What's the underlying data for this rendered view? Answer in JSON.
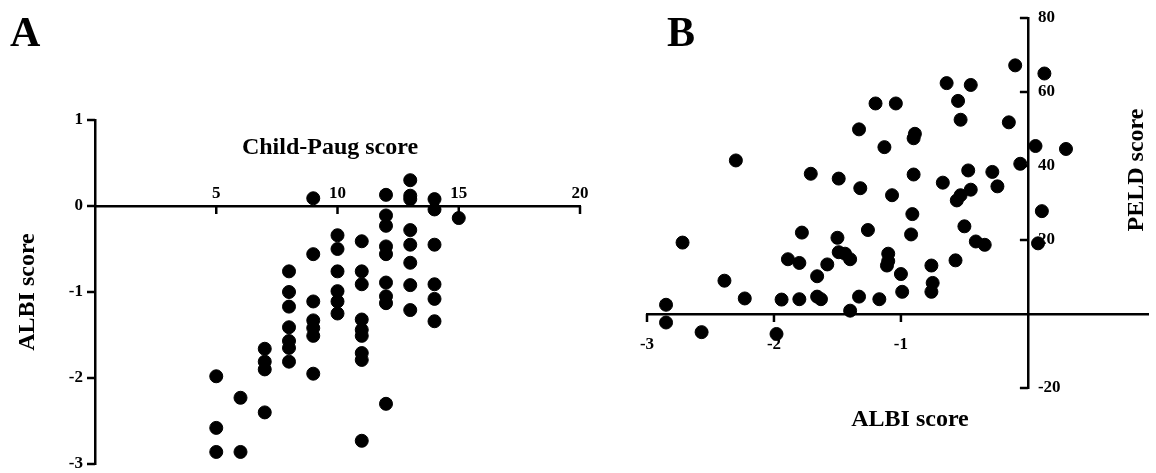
{
  "chart_data": [
    {
      "type": "scatter",
      "xlabel": "Child-Paug score",
      "ylabel": "ALBI score",
      "annotations": [
        "A"
      ],
      "xlim": [
        0,
        20
      ],
      "ylim": [
        -3,
        1
      ],
      "xticks": [
        5,
        10,
        15,
        20
      ],
      "yticks": [
        1,
        0,
        -1,
        -2,
        -3
      ],
      "color": "#000000",
      "marker": "circle",
      "x": [
        5,
        5,
        5,
        6,
        6,
        7,
        7,
        7,
        7,
        8,
        8,
        8,
        8,
        8,
        8,
        8,
        9,
        9,
        9,
        9,
        9,
        9,
        9,
        10,
        10,
        10,
        10,
        10,
        10,
        11,
        11,
        11,
        11,
        11,
        11,
        11,
        11,
        11,
        12,
        12,
        12,
        12,
        12,
        12,
        12,
        12,
        12,
        13,
        13,
        13,
        13,
        13,
        13,
        13,
        13,
        14,
        14,
        14,
        14,
        14,
        14,
        15
      ],
      "values": [
        -1.98,
        -2.58,
        -2.86,
        -2.23,
        -2.86,
        -1.66,
        -1.81,
        -1.9,
        -2.4,
        -0.76,
        -1,
        -1.17,
        -1.41,
        -1.57,
        -1.65,
        -1.81,
        0.09,
        -0.56,
        -1.11,
        -1.33,
        -1.42,
        -1.51,
        -1.95,
        -0.34,
        -0.5,
        -0.76,
        -0.99,
        -1.11,
        -1.25,
        -0.41,
        -0.76,
        -0.91,
        -1.32,
        -1.44,
        -1.51,
        -1.71,
        -1.79,
        -2.73,
        0.13,
        -0.11,
        -0.23,
        -0.47,
        -0.56,
        -0.89,
        -1.05,
        -1.13,
        -2.3,
        0.3,
        0.12,
        0.08,
        -0.28,
        -0.45,
        -0.66,
        -0.92,
        -1.21,
        0.08,
        -0.04,
        -0.45,
        -0.91,
        -1.08,
        -1.34,
        -0.14
      ]
    },
    {
      "type": "scatter",
      "xlabel": "ALBI score",
      "ylabel": "PELD score",
      "annotations": [
        "B"
      ],
      "xlim": [
        -3,
        0.95
      ],
      "ylim": [
        -20,
        80
      ],
      "xticks": [
        -3,
        -2,
        -1
      ],
      "yticks": [
        80,
        60,
        40,
        20,
        -20
      ],
      "color": "#000000",
      "marker": "circle",
      "x": [
        -2.85,
        -2.85,
        -2.72,
        -2.57,
        -2.39,
        -2.3,
        -2.23,
        -1.98,
        -1.94,
        -1.89,
        -1.8,
        -1.8,
        -1.78,
        -1.71,
        -1.66,
        -1.66,
        -1.63,
        -1.58,
        -1.5,
        -1.49,
        -1.49,
        -1.44,
        -1.4,
        -1.4,
        -1.33,
        -1.33,
        -1.32,
        -1.26,
        -1.2,
        -1.17,
        -1.13,
        -1.1,
        -1.1,
        -1.11,
        -1.07,
        -1.04,
        -1,
        -0.99,
        -0.92,
        -0.91,
        -0.9,
        -0.89,
        -0.9,
        -0.76,
        -0.75,
        -0.76,
        -0.67,
        -0.64,
        -0.57,
        -0.56,
        -0.55,
        -0.53,
        -0.53,
        -0.5,
        -0.47,
        -0.45,
        -0.45,
        -0.41,
        -0.34,
        -0.28,
        -0.24,
        -0.15,
        -0.1,
        -0.06,
        0.06,
        0.08,
        0.11,
        0.13,
        0.3
      ],
      "values": [
        2.5,
        -2.3,
        19.3,
        -4.9,
        9,
        41.5,
        4.2,
        -5.4,
        3.9,
        14.8,
        13.8,
        4,
        22,
        37.9,
        10.2,
        4.7,
        4,
        13.4,
        20.6,
        36.6,
        16.7,
        16.3,
        14.8,
        0.9,
        49.9,
        4.7,
        34,
        22.7,
        56.9,
        4,
        45.1,
        16.3,
        14.3,
        13.1,
        32.1,
        56.9,
        10.8,
        6,
        21.5,
        27,
        47.5,
        48.7,
        37.7,
        13.1,
        8.4,
        6,
        35.5,
        62.4,
        14.5,
        30.7,
        57.6,
        32.1,
        52.5,
        23.7,
        38.8,
        33.6,
        61.9,
        19.6,
        18.7,
        38.4,
        34.5,
        51.8,
        67.2,
        40.6,
        45.4,
        19.1,
        27.8,
        65,
        44.6
      ]
    }
  ]
}
